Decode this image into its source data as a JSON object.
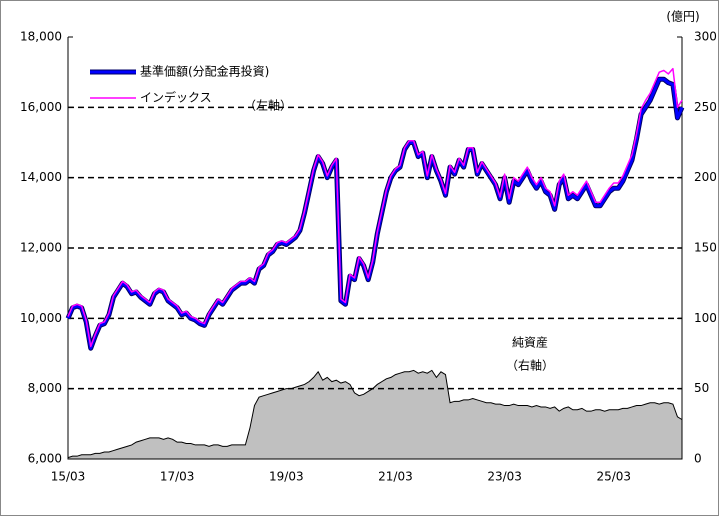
{
  "chart_data": {
    "type": "line",
    "annotations": {
      "unit_right": "(億円)",
      "left_axis": "（左軸）",
      "right_axis": "（右軸）"
    },
    "categories": [
      "15/03",
      null,
      null,
      null,
      null,
      null,
      null,
      null,
      null,
      null,
      null,
      null,
      null,
      null,
      null,
      null,
      null,
      null,
      null,
      null,
      null,
      null,
      null,
      null,
      "17/03",
      null,
      null,
      null,
      null,
      null,
      null,
      null,
      null,
      null,
      null,
      null,
      null,
      null,
      null,
      null,
      null,
      null,
      null,
      null,
      null,
      null,
      null,
      null,
      "19/03",
      null,
      null,
      null,
      null,
      null,
      null,
      null,
      null,
      null,
      null,
      null,
      null,
      null,
      null,
      null,
      null,
      null,
      null,
      null,
      null,
      null,
      null,
      null,
      "21/03",
      null,
      null,
      null,
      null,
      null,
      null,
      null,
      null,
      null,
      null,
      null,
      null,
      null,
      null,
      null,
      null,
      null,
      null,
      null,
      null,
      null,
      null,
      null,
      "23/03",
      null,
      null,
      null,
      null,
      null,
      null,
      null,
      null,
      null,
      null,
      null,
      null,
      null,
      null,
      null,
      null,
      null,
      null,
      null,
      null,
      null,
      null,
      null,
      "25/03",
      null,
      null,
      null,
      null,
      null,
      null,
      null,
      null,
      null,
      null,
      null,
      null,
      null,
      null,
      null
    ],
    "series": [
      {
        "name": "純資産",
        "type": "area",
        "axis": "y2",
        "color": "#c0c0c0",
        "values": [
          1,
          2,
          2,
          3,
          3,
          3,
          4,
          4,
          5,
          5,
          6,
          7,
          8,
          9,
          10,
          12,
          13,
          14,
          15,
          15,
          15,
          14,
          15,
          14,
          12,
          12,
          11,
          11,
          10,
          10,
          10,
          9,
          10,
          10,
          9,
          9,
          10,
          10,
          10,
          10,
          22,
          38,
          44,
          45,
          46,
          47,
          48,
          49,
          50,
          50,
          51,
          52,
          53,
          55,
          58,
          62,
          56,
          58,
          55,
          56,
          54,
          55,
          53,
          47,
          45,
          46,
          48,
          50,
          53,
          55,
          57,
          58,
          60,
          61,
          62,
          62,
          63,
          61,
          62,
          61,
          63,
          58,
          62,
          60,
          40,
          41,
          41,
          42,
          42,
          43,
          42,
          41,
          40,
          40,
          39,
          39,
          38,
          38,
          39,
          38,
          38,
          38,
          37,
          38,
          37,
          37,
          36,
          37,
          34,
          36,
          37,
          35,
          35,
          36,
          34,
          34,
          35,
          35,
          34,
          35,
          35,
          35,
          36,
          36,
          37,
          38,
          38,
          39,
          40,
          40,
          39,
          40,
          40,
          39,
          30,
          28
        ]
      },
      {
        "name": "基準価額(分配金再投資)",
        "color": "#0000ff",
        "values": [
          10000,
          10300,
          10350,
          10300,
          9900,
          9150,
          9500,
          9800,
          9850,
          10100,
          10600,
          10800,
          11000,
          10900,
          10700,
          10750,
          10600,
          10500,
          10400,
          10700,
          10800,
          10750,
          10500,
          10400,
          10300,
          10100,
          10150,
          10000,
          9950,
          9850,
          9800,
          10100,
          10300,
          10500,
          10400,
          10600,
          10800,
          10900,
          11000,
          11000,
          11100,
          11000,
          11400,
          11500,
          11800,
          11900,
          12100,
          12150,
          12100,
          12200,
          12300,
          12500,
          13000,
          13600,
          14200,
          14600,
          14400,
          14000,
          14300,
          14500,
          10500,
          10400,
          11200,
          11100,
          11700,
          11500,
          11100,
          11600,
          12400,
          13000,
          13600,
          14000,
          14200,
          14300,
          14800,
          15000,
          15000,
          14600,
          14700,
          14000,
          14600,
          14200,
          13900,
          13500,
          14300,
          14100,
          14500,
          14300,
          14800,
          14800,
          14100,
          14400,
          14200,
          14000,
          13800,
          13400,
          14000,
          13300,
          13900,
          13800,
          14000,
          14200,
          13900,
          13700,
          13900,
          13600,
          13500,
          13100,
          13800,
          14000,
          13400,
          13500,
          13400,
          13600,
          13800,
          13500,
          13200,
          13200,
          13400,
          13600,
          13700,
          13700,
          13900,
          14200,
          14500,
          15100,
          15800,
          16000,
          16200,
          16500,
          16800,
          16800,
          16700,
          16650,
          15700,
          16000
        ]
      },
      {
        "name": "インデックス",
        "color": "#ff00ff",
        "values": [
          10050,
          10350,
          10400,
          10350,
          9950,
          9200,
          9550,
          9850,
          9900,
          10150,
          10650,
          10850,
          11050,
          10950,
          10750,
          10800,
          10650,
          10550,
          10450,
          10750,
          10850,
          10800,
          10550,
          10450,
          10350,
          10150,
          10200,
          10050,
          10000,
          9900,
          9850,
          10150,
          10350,
          10550,
          10450,
          10650,
          10850,
          10950,
          11050,
          11050,
          11150,
          11050,
          11450,
          11550,
          11850,
          11950,
          12150,
          12200,
          12150,
          12250,
          12350,
          12550,
          13050,
          13650,
          14250,
          14650,
          14450,
          14050,
          14350,
          14550,
          10550,
          10450,
          11250,
          11150,
          11750,
          11550,
          11150,
          11650,
          12450,
          13050,
          13650,
          14050,
          14250,
          14350,
          14850,
          15050,
          15050,
          14650,
          14750,
          14050,
          14650,
          14250,
          13950,
          13550,
          14350,
          14150,
          14550,
          14350,
          14850,
          14850,
          14150,
          14450,
          14250,
          14050,
          13850,
          13450,
          14100,
          13400,
          14000,
          13900,
          14100,
          14300,
          14000,
          13800,
          14000,
          13700,
          13600,
          13200,
          13900,
          14100,
          13500,
          13600,
          13500,
          13700,
          13900,
          13600,
          13300,
          13300,
          13500,
          13700,
          13850,
          13850,
          14050,
          14350,
          14650,
          15250,
          15950,
          16200,
          16400,
          16700,
          17000,
          17050,
          16950,
          17100,
          16000,
          16200
        ]
      }
    ],
    "ylim": [
      6000,
      18000
    ],
    "yticks": [
      {
        "value": 6000,
        "label": "6,000"
      },
      {
        "value": 8000,
        "label": "8,000"
      },
      {
        "value": 10000,
        "label": "10,000"
      },
      {
        "value": 12000,
        "label": "12,000"
      },
      {
        "value": 14000,
        "label": "14,000"
      },
      {
        "value": 16000,
        "label": "16,000"
      },
      {
        "value": 18000,
        "label": "18,000"
      }
    ],
    "y2lim": [
      0,
      300
    ],
    "y2ticks": [
      0,
      50,
      100,
      150,
      200,
      250,
      300
    ],
    "grid": true
  }
}
